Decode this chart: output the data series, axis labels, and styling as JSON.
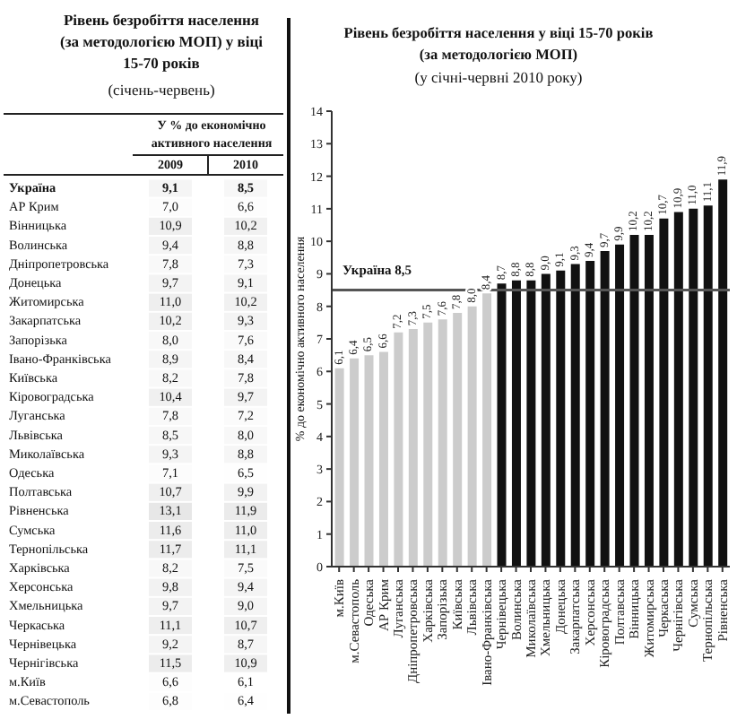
{
  "chart_data": [
    {
      "type": "heatmap",
      "title": "Рівень безробіття населення (за методологією МОП) у віці 15-70 років",
      "subtitle": "(січень-червень)",
      "xlabel": "У % до економічно активного населення",
      "categories": [
        "2009",
        "2010"
      ],
      "y_categories": [
        "Україна",
        "АР Крим",
        "Вінницька",
        "Волинська",
        "Дніпропетровська",
        "Донецька",
        "Житомирська",
        "Закарпатська",
        "Запорізька",
        "Івано-Франківська",
        "Київська",
        "Кіровоградська",
        "Луганська",
        "Львівська",
        "Миколаївська",
        "Одеська",
        "Полтавська",
        "Рівненська",
        "Сумська",
        "Тернопільська",
        "Харківська",
        "Херсонська",
        "Хмельницька",
        "Черкаська",
        "Чернівецька",
        "Чернігівська",
        "м.Київ",
        "м.Севастополь"
      ],
      "cells": [
        [
          9.1,
          8.5
        ],
        [
          7.0,
          6.6
        ],
        [
          10.9,
          10.2
        ],
        [
          9.4,
          8.8
        ],
        [
          7.8,
          7.3
        ],
        [
          9.7,
          9.1
        ],
        [
          11.0,
          10.2
        ],
        [
          10.2,
          9.3
        ],
        [
          8.0,
          7.6
        ],
        [
          8.9,
          8.4
        ],
        [
          8.2,
          7.8
        ],
        [
          10.4,
          9.7
        ],
        [
          7.8,
          7.2
        ],
        [
          8.5,
          8.0
        ],
        [
          9.3,
          8.8
        ],
        [
          7.1,
          6.5
        ],
        [
          10.7,
          9.9
        ],
        [
          13.1,
          11.9
        ],
        [
          11.6,
          11.0
        ],
        [
          11.7,
          11.1
        ],
        [
          8.2,
          7.5
        ],
        [
          9.8,
          9.4
        ],
        [
          9.7,
          9.0
        ],
        [
          11.1,
          10.7
        ],
        [
          9.2,
          8.7
        ],
        [
          11.5,
          10.9
        ],
        [
          6.6,
          6.1
        ],
        [
          6.8,
          6.4
        ]
      ],
      "cell_labels": [
        [
          "9,1",
          "8,5"
        ],
        [
          "7,0",
          "6,6"
        ],
        [
          "10,9",
          "10,2"
        ],
        [
          "9,4",
          "8,8"
        ],
        [
          "7,8",
          "7,3"
        ],
        [
          "9,7",
          "9,1"
        ],
        [
          "11,0",
          "10,2"
        ],
        [
          "10,2",
          "9,3"
        ],
        [
          "8,0",
          "7,6"
        ],
        [
          "8,9",
          "8,4"
        ],
        [
          "8,2",
          "7,8"
        ],
        [
          "10,4",
          "9,7"
        ],
        [
          "7,8",
          "7,2"
        ],
        [
          "8,5",
          "8,0"
        ],
        [
          "9,3",
          "8,8"
        ],
        [
          "7,1",
          "6,5"
        ],
        [
          "10,7",
          "9,9"
        ],
        [
          "13,1",
          "11,9"
        ],
        [
          "11,6",
          "11,0"
        ],
        [
          "11,7",
          "11,1"
        ],
        [
          "8,2",
          "7,5"
        ],
        [
          "9,8",
          "9,4"
        ],
        [
          "9,7",
          "9,0"
        ],
        [
          "11,1",
          "10,7"
        ],
        [
          "9,2",
          "8,7"
        ],
        [
          "11,5",
          "10,9"
        ],
        [
          "6,6",
          "6,1"
        ],
        [
          "6,8",
          "6,4"
        ]
      ]
    },
    {
      "type": "bar",
      "title": "Рівень безробіття населення у віці 15-70 років (за методологією МОП)",
      "subtitle": "(у січні-червні 2010 року)",
      "ylabel": "% до економічно активного населення",
      "categories": [
        "м.Київ",
        "м.Севастополь",
        "Одеська",
        "АР Крим",
        "Луганська",
        "Дніпропетровська",
        "Харківська",
        "Запорізька",
        "Київська",
        "Львівська",
        "Івано-Франківська",
        "Чернівецька",
        "Волинська",
        "Миколаївська",
        "Хмельницька",
        "Донецька",
        "Закарпатська",
        "Херсонська",
        "Кіровоградська",
        "Полтавська",
        "Вінницька",
        "Житомирська",
        "Черкаська",
        "Чернігівська",
        "Сумська",
        "Тернопільська",
        "Рівненська"
      ],
      "values": [
        6.1,
        6.4,
        6.5,
        6.6,
        7.2,
        7.3,
        7.5,
        7.6,
        7.8,
        8.0,
        8.4,
        8.7,
        8.8,
        8.8,
        9.0,
        9.1,
        9.3,
        9.4,
        9.7,
        9.9,
        10.2,
        10.2,
        10.7,
        10.9,
        11.0,
        11.1,
        11.9
      ],
      "value_labels": [
        "6,1",
        "6,4",
        "6,5",
        "6,6",
        "7,2",
        "7,3",
        "7,5",
        "7,6",
        "7,8",
        "8,0",
        "8,4",
        "8,7",
        "8,8",
        "8,8",
        "9,0",
        "9,1",
        "9,3",
        "9,4",
        "9,7",
        "9,9",
        "10,2",
        "10,2",
        "10,7",
        "10,9",
        "11,0",
        "11,1",
        "11,9"
      ],
      "colors": [
        "#cccccc",
        "#cccccc",
        "#cccccc",
        "#cccccc",
        "#cccccc",
        "#cccccc",
        "#cccccc",
        "#cccccc",
        "#cccccc",
        "#cccccc",
        "#cccccc",
        "#111111",
        "#111111",
        "#111111",
        "#111111",
        "#111111",
        "#111111",
        "#111111",
        "#111111",
        "#111111",
        "#111111",
        "#111111",
        "#111111",
        "#111111",
        "#111111",
        "#111111",
        "#111111"
      ],
      "ylim": [
        0,
        14
      ],
      "yticks": [
        0,
        1,
        2,
        3,
        4,
        5,
        6,
        7,
        8,
        9,
        10,
        11,
        12,
        13,
        14
      ],
      "ref_lines": [
        {
          "axis": "y",
          "value": 8.5,
          "label": "Україна 8,5",
          "color": "#555555"
        }
      ]
    }
  ]
}
